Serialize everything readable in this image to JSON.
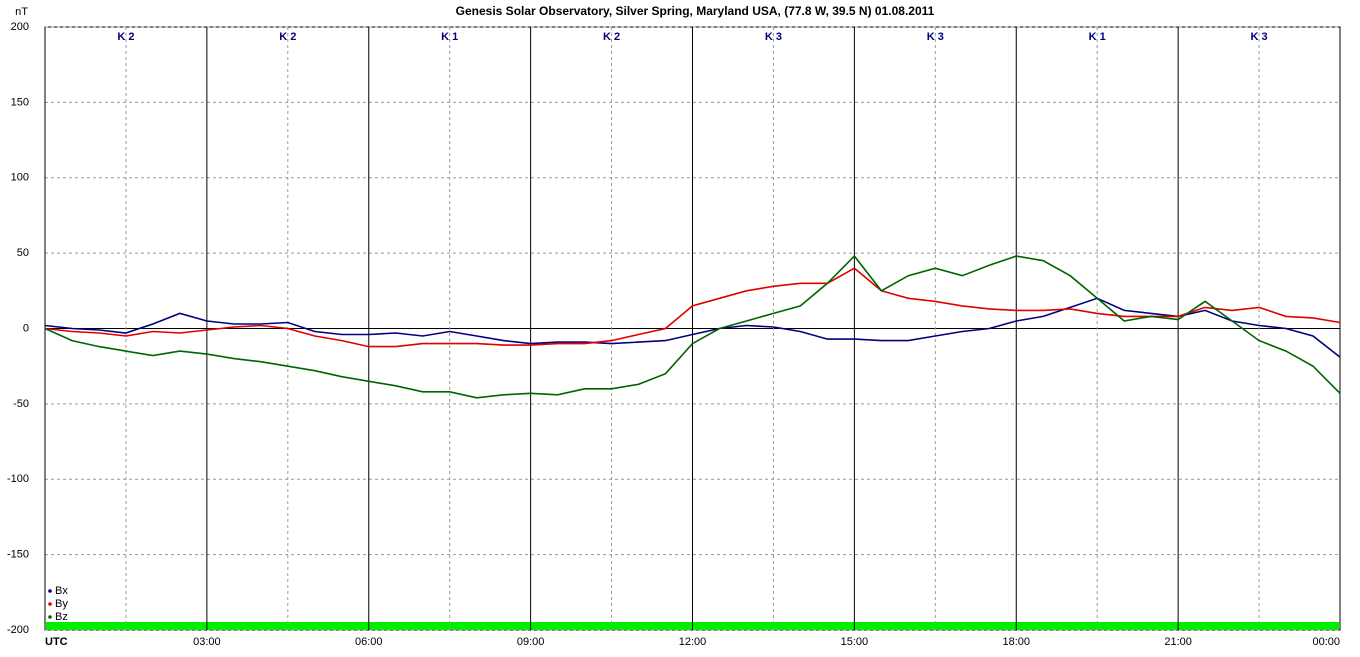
{
  "chart_data": {
    "type": "line",
    "title": "Genesis Solar Observatory, Silver Spring, Maryland USA, (77.8 W, 39.5 N)  01.08.2011",
    "y_label": "nT",
    "k_labels": [
      "K 2",
      "K 2",
      "K 1",
      "K 2",
      "K 3",
      "K 3",
      "K 1",
      "K 3"
    ],
    "x": [
      0,
      0.5,
      1,
      1.5,
      2,
      2.5,
      3,
      3.5,
      4,
      4.5,
      5,
      5.5,
      6,
      6.5,
      7,
      7.5,
      8,
      8.5,
      9,
      9.5,
      10,
      10.5,
      11,
      11.5,
      12,
      12.5,
      13,
      13.5,
      14,
      14.5,
      15,
      15.5,
      16,
      16.5,
      17,
      17.5,
      18,
      18.5,
      19,
      19.5,
      20,
      20.5,
      21,
      21.5,
      22,
      22.5,
      23,
      23.5,
      24
    ],
    "series": [
      {
        "name": "Bx",
        "color": "#000080",
        "values": [
          2,
          0,
          -1,
          -3,
          3,
          10,
          5,
          3,
          3,
          4,
          -2,
          -4,
          -4,
          -3,
          -5,
          -2,
          -5,
          -8,
          -10,
          -9,
          -9,
          -10,
          -9,
          -8,
          -4,
          0,
          2,
          1,
          -2,
          -7,
          -7,
          -8,
          -8,
          -5,
          -2,
          0,
          5,
          8,
          14,
          20,
          12,
          10,
          8,
          12,
          5,
          2,
          0,
          -5,
          -19
        ]
      },
      {
        "name": "By",
        "color": "#e00000",
        "values": [
          0,
          -2,
          -3,
          -5,
          -2,
          -3,
          -1,
          1,
          2,
          0,
          -5,
          -8,
          -12,
          -12,
          -10,
          -10,
          -10,
          -11,
          -11,
          -10,
          -10,
          -8,
          -4,
          0,
          15,
          20,
          25,
          28,
          30,
          30,
          40,
          25,
          20,
          18,
          15,
          13,
          12,
          12,
          13,
          10,
          8,
          8,
          8,
          14,
          12,
          14,
          8,
          7,
          4
        ]
      },
      {
        "name": "Bz",
        "color": "#006400",
        "values": [
          0,
          -8,
          -12,
          -15,
          -18,
          -15,
          -17,
          -20,
          -22,
          -25,
          -28,
          -32,
          -35,
          -38,
          -42,
          -42,
          -46,
          -44,
          -43,
          -44,
          -40,
          -40,
          -37,
          -30,
          -10,
          0,
          5,
          10,
          15,
          30,
          48,
          25,
          35,
          40,
          35,
          42,
          48,
          45,
          35,
          20,
          5,
          8,
          6,
          18,
          5,
          -8,
          -15,
          -25,
          -43
        ]
      }
    ],
    "xlim": [
      0,
      24
    ],
    "xticks": [
      {
        "value": 0,
        "label": "UTC"
      },
      {
        "value": 3,
        "label": "03:00"
      },
      {
        "value": 6,
        "label": "06:00"
      },
      {
        "value": 9,
        "label": "09:00"
      },
      {
        "value": 12,
        "label": "12:00"
      },
      {
        "value": 15,
        "label": "15:00"
      },
      {
        "value": 18,
        "label": "18:00"
      },
      {
        "value": 21,
        "label": "21:00"
      },
      {
        "value": 24,
        "label": "00:00"
      }
    ],
    "ylim": [
      -200,
      200
    ],
    "yticks": [
      200,
      150,
      100,
      50,
      0,
      -50,
      -100,
      -150,
      -200
    ],
    "grid": true,
    "legend": "bottom-left"
  }
}
